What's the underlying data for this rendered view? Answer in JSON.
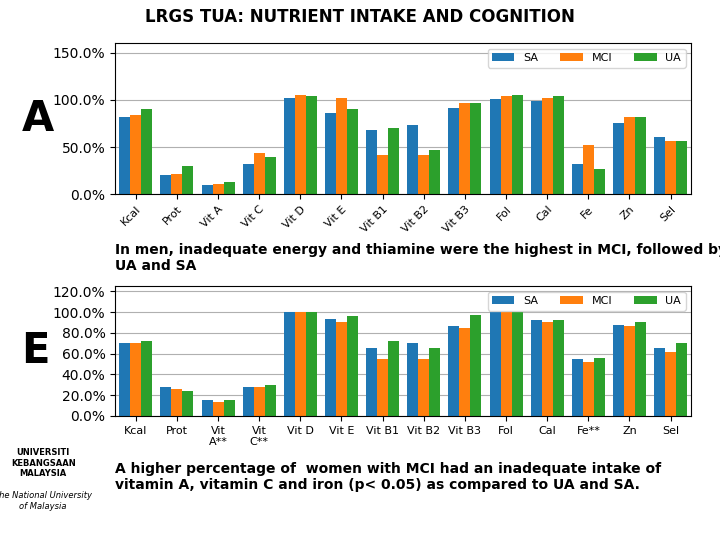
{
  "title": "LRGS TUA: NUTRIENT INTAKE AND COGNITION",
  "annotations": [
    "UNIVERSITI\nKEBANGSAAN\nMALAYSIA",
    "The National University\nof Malaysia"
  ],
  "chart_data": [
    {
      "type": "bar",
      "categories": [
        "Kcal",
        "Prot",
        "Vit A",
        "Vit C",
        "Vit D",
        "Vit E",
        "Vit B1",
        "Vit B2",
        "Vit B3",
        "Fol",
        "Cal",
        "Fe",
        "Zn",
        "Sel"
      ],
      "series": [
        {
          "name": "SA",
          "values": [
            82,
            20,
            10,
            32,
            102,
            86,
            68,
            73,
            91,
            101,
            99,
            32,
            76,
            61
          ]
        },
        {
          "name": "MCI",
          "values": [
            84,
            22,
            11,
            44,
            105,
            102,
            42,
            42,
            97,
            104,
            102,
            52,
            82,
            57
          ]
        },
        {
          "name": "UA",
          "values": [
            90,
            30,
            13,
            40,
            104,
            90,
            70,
            47,
            97,
            105,
            104,
            27,
            82,
            57
          ]
        }
      ],
      "ylim": [
        0,
        160
      ],
      "yticks": [
        {
          "value": 0,
          "label": "0.0%"
        },
        {
          "value": 50,
          "label": "50.0%"
        },
        {
          "value": 100,
          "label": "100.0%"
        },
        {
          "value": 150,
          "label": "150.0%"
        }
      ],
      "grid": true,
      "legend": "upper right",
      "annotations": [
        "A",
        "In men, inadequate energy and thiamine were the highest in MCI, followed by\nUA and SA"
      ]
    },
    {
      "type": "bar",
      "categories": [
        "Kcal",
        "Prot",
        "Vit\nA**",
        "Vit\nC**",
        "Vit D",
        "Vit E",
        "Vit B1",
        "Vit B2",
        "Vit B3",
        "Fol",
        "Cal",
        "Fe**",
        "Zn",
        "Sel"
      ],
      "series": [
        {
          "name": "SA",
          "values": [
            70,
            28,
            15,
            28,
            100,
            93,
            65,
            70,
            87,
            100,
            92,
            55,
            88,
            65
          ]
        },
        {
          "name": "MCI",
          "values": [
            70,
            26,
            13,
            28,
            100,
            90,
            55,
            55,
            85,
            100,
            90,
            52,
            87,
            62
          ]
        },
        {
          "name": "UA",
          "values": [
            72,
            24,
            15,
            30,
            100,
            96,
            72,
            65,
            97,
            100,
            92,
            56,
            90,
            70
          ]
        }
      ],
      "ylim": [
        0,
        125
      ],
      "yticks": [
        {
          "value": 0,
          "label": "0.0%"
        },
        {
          "value": 20,
          "label": "20.0%"
        },
        {
          "value": 40,
          "label": "40.0%"
        },
        {
          "value": 60,
          "label": "60.0%"
        },
        {
          "value": 80,
          "label": "80.0%"
        },
        {
          "value": 100,
          "label": "100.0%"
        },
        {
          "value": 120,
          "label": "120.0%"
        }
      ],
      "grid": true,
      "legend": "upper right",
      "annotations": [
        "E",
        "A higher percentage of  women with MCI had an inadequate intake of\nvitamin A, vitamin C and iron (p< 0.05) as compared to UA and SA."
      ]
    }
  ]
}
